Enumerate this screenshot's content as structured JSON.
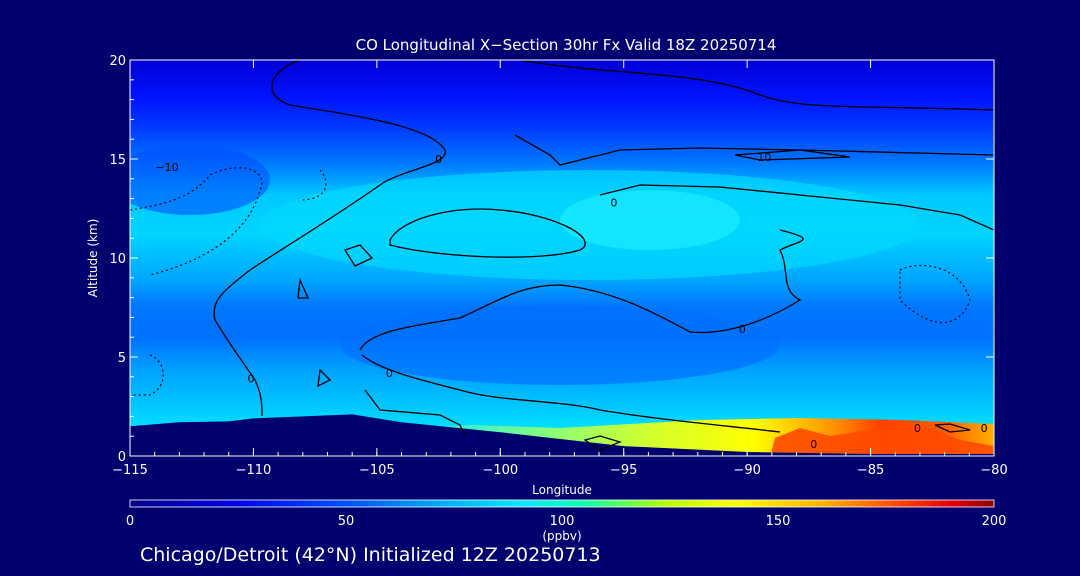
{
  "chart_data": {
    "type": "heatmap",
    "title": "CO Longitudinal X−Section 30hr  Fx Valid 18Z 20250714",
    "xlabel": "Longitude",
    "ylabel": "Altitude (km)",
    "xlim": [
      -115,
      -80
    ],
    "ylim": [
      0,
      20
    ],
    "x_ticks": [
      -115,
      -110,
      -105,
      -100,
      -95,
      -90,
      -85,
      -80
    ],
    "x_tick_labels": [
      "−115",
      "−110",
      "−105",
      "−100",
      "−95",
      "−90",
      "−85",
      "−80"
    ],
    "y_ticks": [
      0,
      5,
      10,
      15,
      20
    ],
    "y_tick_labels": [
      "0",
      "5",
      "10",
      "15",
      "20"
    ],
    "field_units": "ppbv",
    "colorbar": {
      "range": [
        0,
        200
      ],
      "ticks": [
        0,
        50,
        100,
        150,
        200
      ],
      "tick_labels": [
        "0",
        "50",
        "100",
        "150",
        "200"
      ],
      "units_label": "(ppbv)"
    },
    "contour_labels": [
      "−10",
      "0",
      "0",
      "0",
      "0",
      "0",
      "10",
      "0",
      "0",
      "0"
    ],
    "terrain_km": [
      [
        -115,
        1.5
      ],
      [
        -113,
        1.7
      ],
      [
        -111,
        1.75
      ],
      [
        -110,
        1.9
      ],
      [
        -108,
        2.0
      ],
      [
        -106,
        2.1
      ],
      [
        -104,
        1.7
      ],
      [
        -100,
        1.2
      ],
      [
        -95,
        0.5
      ],
      [
        -90,
        0.2
      ],
      [
        -85,
        0.1
      ],
      [
        -80,
        0.1
      ]
    ],
    "co_layers_ppbv": [
      {
        "altitude_km": 19.5,
        "value": 25
      },
      {
        "altitude_km": 17.5,
        "value": 35
      },
      {
        "altitude_km": 16.0,
        "value": 42
      },
      {
        "altitude_km": 12.5,
        "value": 72
      },
      {
        "altitude_km": 9.0,
        "value": 62
      },
      {
        "altitude_km": 6.5,
        "value": 52
      },
      {
        "altitude_km": 4.0,
        "value": 64
      },
      {
        "altitude_km": 2.0,
        "value": 75
      },
      {
        "altitude_km": 0.8,
        "value": 95
      }
    ],
    "co_surface_ppbv": [
      {
        "longitude": -98,
        "value": 110
      },
      {
        "longitude": -95,
        "value": 125
      },
      {
        "longitude": -91,
        "value": 140
      },
      {
        "longitude": -88,
        "value": 175
      },
      {
        "longitude": -86,
        "value": 185
      },
      {
        "longitude": -83,
        "value": 180
      },
      {
        "longitude": -81,
        "value": 160
      }
    ]
  },
  "footer_text": "Chicago/Detroit (42°N) Initialized 12Z 20250713",
  "colors": {
    "background": "#00006e",
    "colormap": [
      "#00008c",
      "#0000e6",
      "#0050ff",
      "#00b4ff",
      "#00e6ff",
      "#00ffb4",
      "#b4ff00",
      "#ffff00",
      "#ffb400",
      "#ff5000",
      "#e60000",
      "#8c0000"
    ]
  }
}
